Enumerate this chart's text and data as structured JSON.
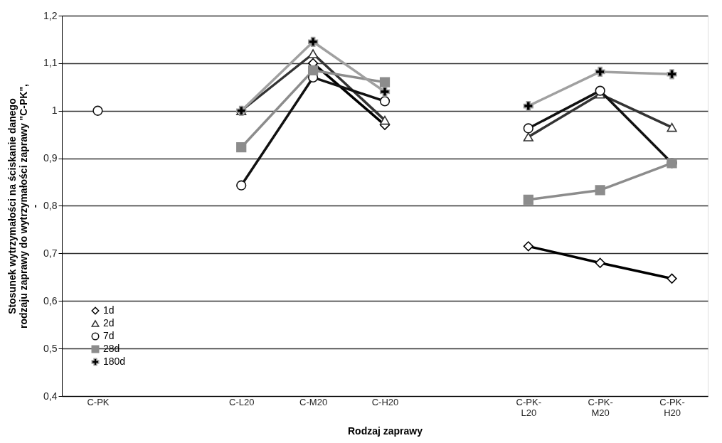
{
  "chart_data": {
    "type": "line",
    "xlabel": "Rodzaj zaprawy",
    "ylabel": "Stosunek wytrzymałości na ściskanie danego rodzaju zaprawy do wytrzymałości zaprawy \"C-PK\", -",
    "categories": [
      "C-PK",
      null,
      "C-L20",
      "C-M20",
      "C-H20",
      null,
      "C-PK-L20",
      "C-PK-M20",
      "C-PK-H20"
    ],
    "series": [
      {
        "name": "1d",
        "color": "#000000",
        "marker": "diamond",
        "values": [
          null,
          null,
          null,
          1.1,
          0.97,
          null,
          0.715,
          0.68,
          0.647
        ]
      },
      {
        "name": "2d",
        "color": "#333333",
        "marker": "triangle",
        "values": [
          null,
          null,
          1.0,
          1.12,
          0.98,
          null,
          0.945,
          1.035,
          0.965
        ]
      },
      {
        "name": "7d",
        "color": "#111111",
        "marker": "circle",
        "values": [
          1.0,
          null,
          0.843,
          1.07,
          1.02,
          null,
          0.963,
          1.042,
          0.89
        ]
      },
      {
        "name": "28d",
        "color": "#8c8c8c",
        "marker": "square",
        "values": [
          null,
          null,
          0.923,
          1.085,
          1.06,
          null,
          0.813,
          0.833,
          0.89
        ]
      },
      {
        "name": "180d",
        "color": "#a0a0a0",
        "marker": "cross",
        "values": [
          null,
          null,
          1.0,
          1.145,
          1.04,
          null,
          1.01,
          1.082,
          1.077
        ]
      }
    ],
    "ylim": [
      0.4,
      1.2
    ],
    "yticks": [
      {
        "value": 0.4,
        "label": "0,4"
      },
      {
        "value": 0.5,
        "label": "0,5"
      },
      {
        "value": 0.6,
        "label": "0,6"
      },
      {
        "value": 0.7,
        "label": "0,7"
      },
      {
        "value": 0.8,
        "label": "0,8"
      },
      {
        "value": 0.9,
        "label": "0,9"
      },
      1,
      {
        "value": 1.1,
        "label": "1,1"
      },
      {
        "value": 1.2,
        "label": "1,2"
      }
    ],
    "grid": "y",
    "legend": "bottom left"
  }
}
